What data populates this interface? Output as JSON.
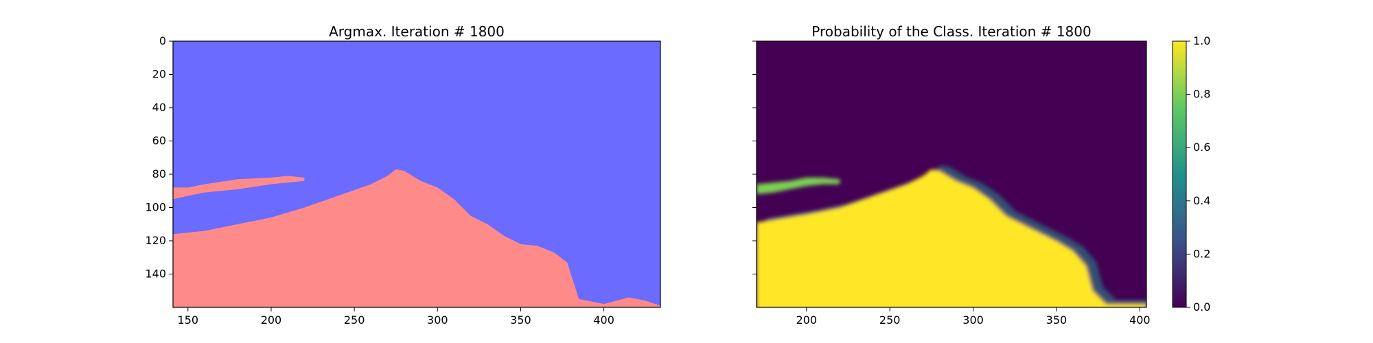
{
  "chart_data": [
    {
      "type": "heatmap",
      "title": "Argmax. Iteration # 1800",
      "xlabel": "",
      "ylabel": "",
      "xlim": [
        141,
        434
      ],
      "ylim": [
        160,
        0
      ],
      "xticks": [
        150,
        200,
        250,
        300,
        350,
        400
      ],
      "yticks": [
        0,
        20,
        40,
        60,
        80,
        100,
        120,
        140
      ],
      "colors": {
        "class_0": "#6b6bff",
        "class_1": "#ff8a8a"
      },
      "boundary": {
        "x": [
          141,
          160,
          180,
          200,
          220,
          240,
          260,
          270,
          275,
          280,
          290,
          300,
          310,
          320,
          330,
          340,
          350,
          360,
          370,
          378,
          385,
          400,
          415,
          425,
          434
        ],
        "top": [
          116,
          114,
          110,
          106,
          100,
          93,
          86,
          81,
          77,
          78,
          84,
          88,
          95,
          105,
          110,
          117,
          122,
          123,
          127,
          133,
          155,
          158,
          154,
          156,
          159
        ]
      },
      "stripe": {
        "x": [
          141,
          150,
          160,
          180,
          200,
          210,
          220
        ],
        "top": [
          88,
          88,
          86,
          83,
          82,
          81,
          82
        ],
        "bottom": [
          95,
          93,
          91,
          89,
          86,
          85,
          84
        ]
      }
    },
    {
      "type": "heatmap",
      "title": "Probability of the Class. Iteration # 1800",
      "xlabel": "",
      "ylabel": "",
      "xlim": [
        170,
        404
      ],
      "ylim": [
        160,
        0
      ],
      "xticks": [
        200,
        250,
        300,
        350,
        400
      ],
      "yticks": [
        0,
        20,
        40,
        60,
        80,
        100,
        120,
        140
      ],
      "colormap": "viridis",
      "colorbar": {
        "range": [
          0,
          1
        ],
        "ticks": [
          "0.0",
          "0.2",
          "0.4",
          "0.6",
          "0.8",
          "1.0"
        ]
      },
      "boundary": {
        "x": [
          170,
          200,
          220,
          240,
          260,
          270,
          275,
          280,
          290,
          300,
          310,
          320,
          330,
          340,
          350,
          360,
          368,
          372,
          380,
          404
        ],
        "top": [
          109,
          104,
          100,
          93,
          86,
          81,
          77,
          78,
          84,
          88,
          95,
          105,
          110,
          115,
          120,
          126,
          135,
          150,
          158,
          158
        ]
      },
      "stripe": {
        "x": [
          170,
          180,
          190,
          200,
          210,
          220
        ],
        "top": [
          86,
          85,
          84,
          82,
          82,
          83
        ],
        "bottom": [
          92,
          91,
          89,
          87,
          86,
          86
        ]
      }
    }
  ]
}
